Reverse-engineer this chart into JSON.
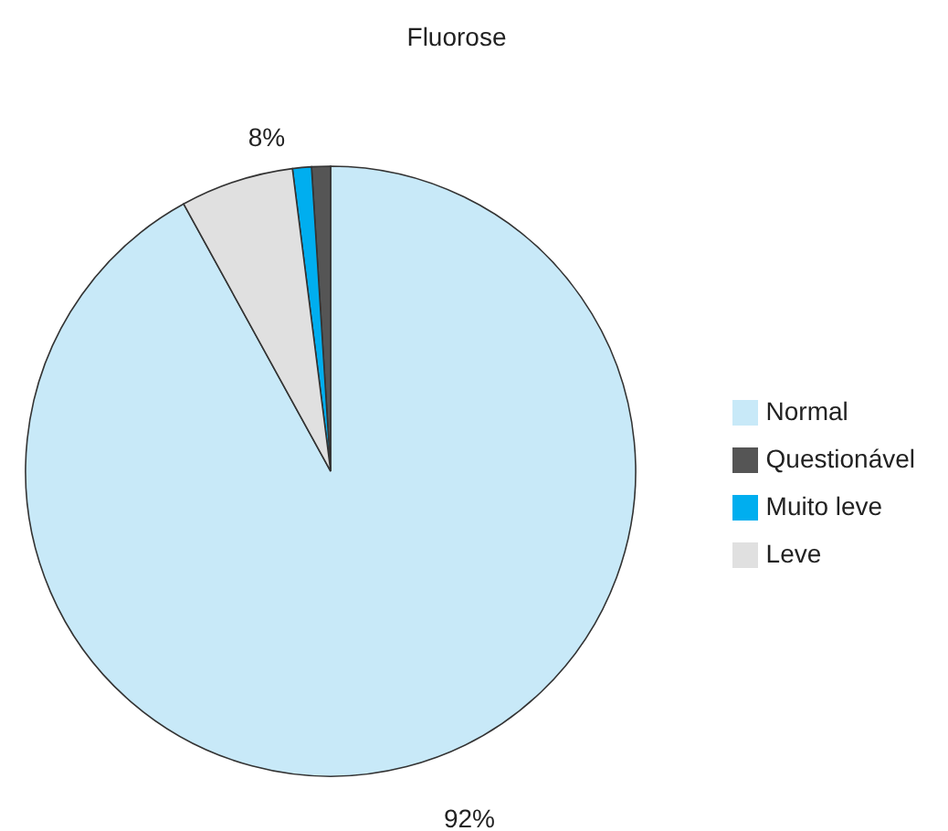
{
  "chart_data": {
    "type": "pie",
    "title": "Fluorose",
    "categories": [
      "Normal",
      "Questionável",
      "Muito leve",
      "Leve"
    ],
    "values": [
      92,
      1,
      1,
      6
    ],
    "colors": [
      "#c8e9f8",
      "#555555",
      "#00aeef",
      "#e0e0e0"
    ],
    "legend": "right",
    "annotations": [
      "8%",
      "92%"
    ]
  }
}
